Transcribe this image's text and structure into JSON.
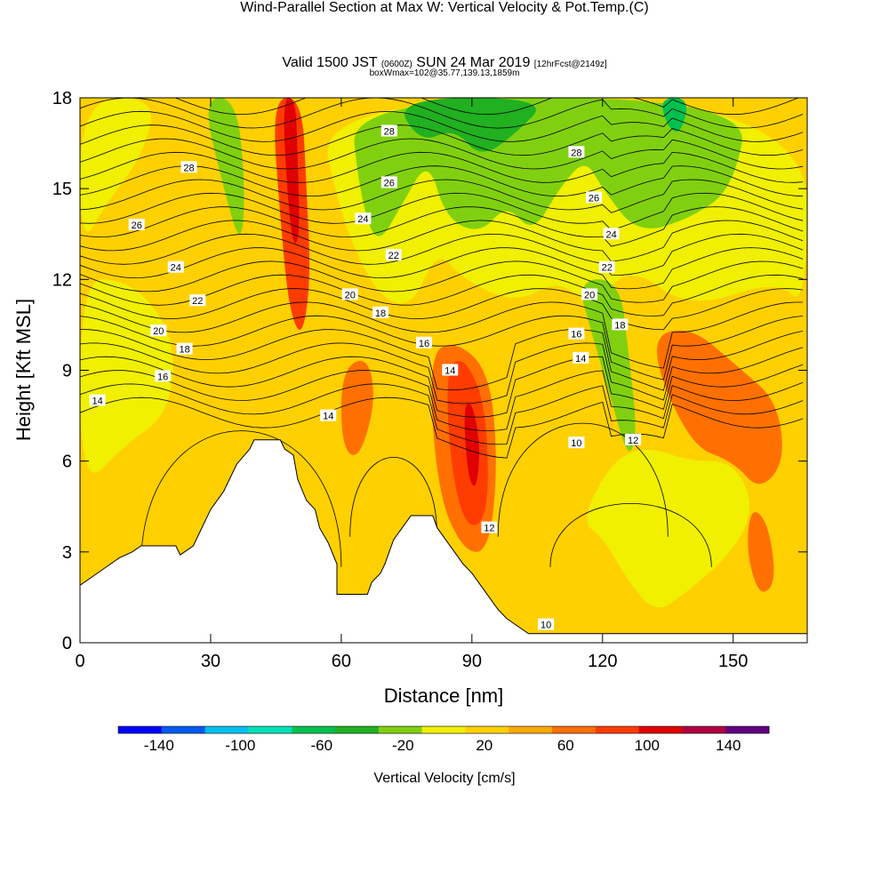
{
  "header": {
    "title": "Wind-Parallel Section at Max W: Vertical Velocity & Pot.Temp.",
    "copyright_mark": "(C)",
    "valid_prefix": "Valid 1500 JST",
    "valid_zulu": "(0600Z)",
    "valid_date": "SUN 24 Mar 2019",
    "valid_fcst": "[12hrFcst@2149z]",
    "box_info": "boxWmax=102@35.77,139.13,1859m"
  },
  "chart_data": {
    "type": "heatmap",
    "xlabel": "Distance [nm]",
    "ylabel": "Height [Kft MSL]",
    "xlim": [
      0,
      167
    ],
    "ylim": [
      0,
      18
    ],
    "x_ticks": [
      0,
      30,
      60,
      90,
      120,
      150
    ],
    "y_ticks": [
      0,
      3,
      6,
      9,
      12,
      15,
      18
    ],
    "colorbar": {
      "title": "Vertical Velocity [cm/s]",
      "tick_labels": [
        "-140",
        "-100",
        "-60",
        "-20",
        "20",
        "60",
        "100",
        "140"
      ],
      "tick_values": [
        -140,
        -100,
        -60,
        -20,
        20,
        60,
        100,
        140
      ],
      "min": -160,
      "max": 160,
      "step": 20,
      "colors": [
        "#0000ff",
        "#005af0",
        "#00c0f0",
        "#00e0b8",
        "#00c050",
        "#20b020",
        "#80d010",
        "#f0f000",
        "#ffd000",
        "#ffa800",
        "#ff7000",
        "#ff3c00",
        "#e00000",
        "#b00040",
        "#600080"
      ]
    },
    "terrain": [
      [
        0,
        1.9
      ],
      [
        3,
        2.2
      ],
      [
        6,
        2.5
      ],
      [
        9,
        2.8
      ],
      [
        12,
        3.0
      ],
      [
        14,
        3.2
      ],
      [
        22,
        3.2
      ],
      [
        23,
        2.9
      ],
      [
        26,
        3.2
      ],
      [
        28,
        3.8
      ],
      [
        30,
        4.4
      ],
      [
        33,
        5.0
      ],
      [
        36,
        5.9
      ],
      [
        39,
        6.4
      ],
      [
        40,
        6.7
      ],
      [
        46,
        6.7
      ],
      [
        47,
        6.4
      ],
      [
        49,
        6.2
      ],
      [
        50,
        5.4
      ],
      [
        52,
        4.7
      ],
      [
        54,
        4.4
      ],
      [
        55,
        3.8
      ],
      [
        57,
        3.3
      ],
      [
        59,
        2.6
      ],
      [
        59,
        1.6
      ],
      [
        66,
        1.6
      ],
      [
        67,
        2.0
      ],
      [
        69,
        2.3
      ],
      [
        70,
        2.6
      ],
      [
        71,
        3.0
      ],
      [
        72,
        3.4
      ],
      [
        74,
        3.8
      ],
      [
        76,
        4.2
      ],
      [
        81,
        4.2
      ],
      [
        82,
        3.8
      ],
      [
        84,
        3.4
      ],
      [
        86,
        3.0
      ],
      [
        88,
        2.6
      ],
      [
        90,
        2.3
      ],
      [
        92,
        1.9
      ],
      [
        94,
        1.5
      ],
      [
        96,
        1.1
      ],
      [
        98,
        0.8
      ],
      [
        100,
        0.6
      ],
      [
        103,
        0.3
      ],
      [
        167,
        0.3
      ]
    ],
    "w_field_description": "filled contours of vertical velocity; strongest updraft near x=48-50 aloft and x=90-92 at 5-7 kft",
    "w_regions": [
      {
        "level": -20,
        "points": [
          [
            0,
            5
          ],
          [
            10,
            6.5
          ],
          [
            20,
            7.5
          ],
          [
            22,
            9.5
          ],
          [
            18,
            11
          ],
          [
            10,
            12
          ],
          [
            0,
            12
          ]
        ]
      },
      {
        "level": -20,
        "points": [
          [
            0,
            13
          ],
          [
            6,
            14.5
          ],
          [
            14,
            16
          ],
          [
            18,
            18
          ],
          [
            0,
            18
          ]
        ]
      },
      {
        "level": -40,
        "points": [
          [
            28,
            18
          ],
          [
            33,
            15
          ],
          [
            37,
            13
          ],
          [
            38,
            15
          ],
          [
            36,
            18
          ]
        ]
      },
      {
        "level": 60,
        "points": [
          [
            44,
            18
          ],
          [
            46,
            14
          ],
          [
            48,
            11
          ],
          [
            51,
            10
          ],
          [
            53,
            12
          ],
          [
            52,
            15
          ],
          [
            51,
            18
          ]
        ]
      },
      {
        "level": 80,
        "points": [
          [
            46.5,
            18
          ],
          [
            47.5,
            15
          ],
          [
            49,
            13
          ],
          [
            50.5,
            13.5
          ],
          [
            50,
            16
          ],
          [
            49.5,
            18
          ]
        ]
      },
      {
        "level": -20,
        "points": [
          [
            54,
            18
          ],
          [
            60,
            14
          ],
          [
            68,
            11.5
          ],
          [
            76,
            11
          ],
          [
            82,
            13
          ],
          [
            88,
            12
          ],
          [
            100,
            11.2
          ],
          [
            110,
            12
          ],
          [
            118,
            11
          ],
          [
            126,
            12.5
          ],
          [
            140,
            11
          ],
          [
            160,
            12
          ],
          [
            167,
            11
          ],
          [
            167,
            18
          ]
        ]
      },
      {
        "level": -40,
        "points": [
          [
            62,
            18
          ],
          [
            64,
            15
          ],
          [
            68,
            13
          ],
          [
            74,
            14.5
          ],
          [
            80,
            16
          ],
          [
            84,
            14
          ],
          [
            92,
            13.5
          ],
          [
            98,
            14.5
          ],
          [
            104,
            13.5
          ],
          [
            110,
            15
          ],
          [
            116,
            16
          ],
          [
            120,
            15
          ],
          [
            128,
            13.5
          ],
          [
            140,
            14
          ],
          [
            150,
            15
          ],
          [
            154,
            18
          ]
        ]
      },
      {
        "level": -60,
        "points": [
          [
            72,
            18
          ],
          [
            78,
            16.5
          ],
          [
            86,
            17
          ],
          [
            92,
            16
          ],
          [
            100,
            16.8
          ],
          [
            108,
            18
          ]
        ]
      },
      {
        "level": -80,
        "points": [
          [
            133,
            18
          ],
          [
            135,
            17
          ],
          [
            138,
            16.8
          ],
          [
            140,
            18
          ]
        ]
      },
      {
        "level": -40,
        "points": [
          [
            114,
            12
          ],
          [
            118,
            10
          ],
          [
            122,
            8
          ],
          [
            126,
            6
          ],
          [
            128,
            7
          ],
          [
            126,
            9.5
          ],
          [
            124,
            12
          ]
        ]
      },
      {
        "level": 40,
        "points": [
          [
            60,
            9
          ],
          [
            66,
            9.5
          ],
          [
            68,
            8
          ],
          [
            64,
            6
          ],
          [
            60,
            6.5
          ]
        ]
      },
      {
        "level": 40,
        "points": [
          [
            80,
            9.5
          ],
          [
            86,
            10
          ],
          [
            94,
            9
          ],
          [
            96,
            6
          ],
          [
            94,
            3
          ],
          [
            88,
            3
          ],
          [
            82,
            5
          ]
        ]
      },
      {
        "level": 60,
        "points": [
          [
            84,
            9
          ],
          [
            88,
            9.5
          ],
          [
            93,
            8
          ],
          [
            94,
            5
          ],
          [
            92,
            3.8
          ],
          [
            88,
            4
          ],
          [
            85,
            6
          ]
        ]
      },
      {
        "level": 80,
        "points": [
          [
            88,
            7.8
          ],
          [
            90,
            8
          ],
          [
            92,
            6.5
          ],
          [
            91,
            5
          ],
          [
            89,
            5.5
          ]
        ]
      },
      {
        "level": -20,
        "points": [
          [
            115,
            4
          ],
          [
            120,
            3.5
          ],
          [
            126,
            2
          ],
          [
            132,
            1
          ],
          [
            138,
            1.5
          ],
          [
            150,
            3
          ],
          [
            155,
            4.5
          ],
          [
            150,
            6
          ],
          [
            140,
            6
          ],
          [
            130,
            6.5
          ],
          [
            122,
            6
          ]
        ]
      },
      {
        "level": 40,
        "points": [
          [
            130,
            10
          ],
          [
            140,
            10.5
          ],
          [
            152,
            9
          ],
          [
            160,
            8
          ],
          [
            162,
            6
          ],
          [
            156,
            5
          ],
          [
            150,
            6
          ],
          [
            140,
            6.5
          ]
        ]
      },
      {
        "level": 40,
        "points": [
          [
            154,
            4.5
          ],
          [
            158,
            4
          ],
          [
            160,
            2
          ],
          [
            156,
            1.5
          ],
          [
            153,
            3
          ]
        ]
      }
    ],
    "contour_labels": [
      {
        "x": 4,
        "y": 8.0,
        "text": "14"
      },
      {
        "x": 19,
        "y": 8.8,
        "text": "16"
      },
      {
        "x": 24,
        "y": 9.7,
        "text": "18"
      },
      {
        "x": 18,
        "y": 10.3,
        "text": "20"
      },
      {
        "x": 27,
        "y": 11.3,
        "text": "22"
      },
      {
        "x": 22,
        "y": 12.4,
        "text": "24"
      },
      {
        "x": 13,
        "y": 13.8,
        "text": "26"
      },
      {
        "x": 25,
        "y": 15.7,
        "text": "28"
      },
      {
        "x": 57,
        "y": 7.5,
        "text": "14"
      },
      {
        "x": 62,
        "y": 11.5,
        "text": "20"
      },
      {
        "x": 69,
        "y": 10.9,
        "text": "18"
      },
      {
        "x": 65,
        "y": 14.0,
        "text": "24"
      },
      {
        "x": 72,
        "y": 12.8,
        "text": "22"
      },
      {
        "x": 71,
        "y": 15.2,
        "text": "26"
      },
      {
        "x": 71,
        "y": 16.9,
        "text": "28"
      },
      {
        "x": 79,
        "y": 9.9,
        "text": "16"
      },
      {
        "x": 85,
        "y": 9.0,
        "text": "14"
      },
      {
        "x": 94,
        "y": 3.8,
        "text": "12"
      },
      {
        "x": 107,
        "y": 0.6,
        "text": "10"
      },
      {
        "x": 114,
        "y": 6.6,
        "text": "10"
      },
      {
        "x": 127,
        "y": 6.7,
        "text": "12"
      },
      {
        "x": 115,
        "y": 9.4,
        "text": "14"
      },
      {
        "x": 114,
        "y": 10.2,
        "text": "16"
      },
      {
        "x": 124,
        "y": 10.5,
        "text": "18"
      },
      {
        "x": 117,
        "y": 11.5,
        "text": "20"
      },
      {
        "x": 121,
        "y": 12.4,
        "text": "22"
      },
      {
        "x": 122,
        "y": 13.5,
        "text": "24"
      },
      {
        "x": 118,
        "y": 14.7,
        "text": "26"
      },
      {
        "x": 114,
        "y": 16.2,
        "text": "28"
      }
    ]
  }
}
